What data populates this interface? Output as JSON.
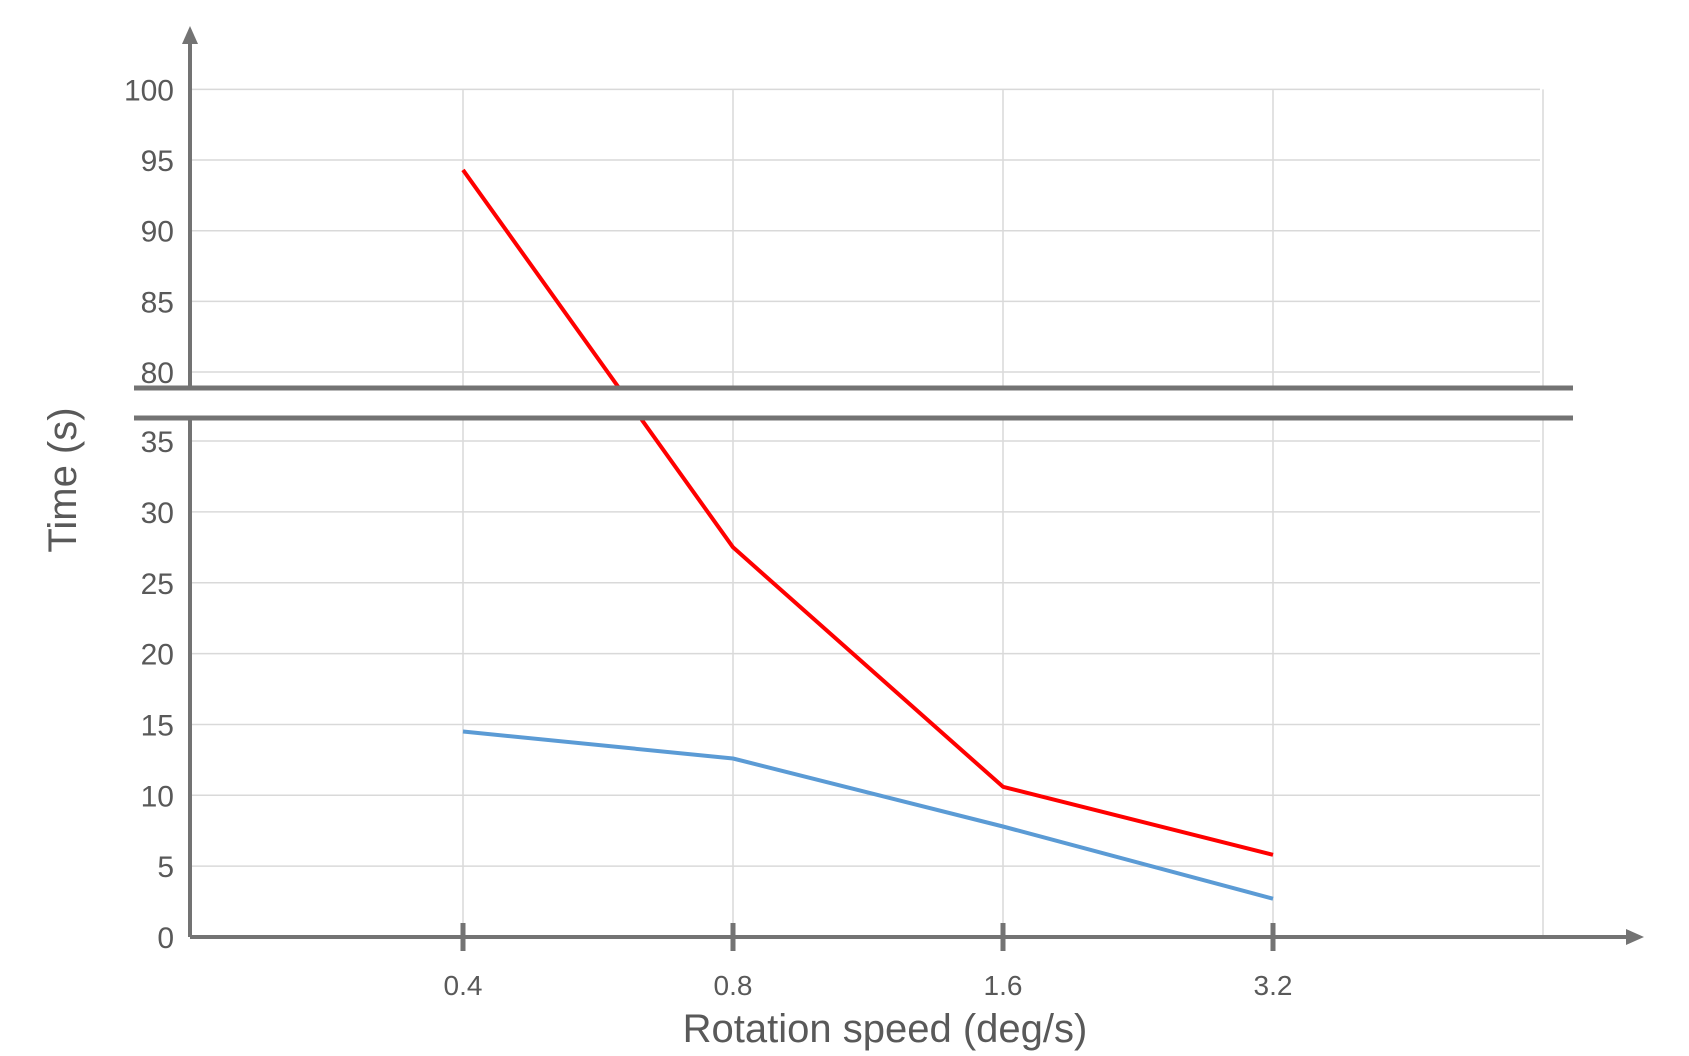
{
  "chart_data": {
    "type": "line",
    "xlabel": "Rotation speed (deg/s)",
    "ylabel": "Time (s)",
    "categories": [
      "0.4",
      "0.8",
      "1.6",
      "3.2"
    ],
    "y_ticks_lower": [
      "0",
      "5",
      "10",
      "15",
      "20",
      "25",
      "30",
      "35"
    ],
    "y_ticks_upper": [
      "80",
      "85",
      "90",
      "95",
      "100"
    ],
    "ylim_lower": [
      0,
      36
    ],
    "ylim_upper": [
      79,
      100
    ],
    "axis_break": true,
    "grid": true,
    "legend": "none",
    "series": [
      {
        "color": "#ff0000",
        "values": [
          94.3,
          27.5,
          10.6,
          5.8
        ]
      },
      {
        "color": "#5b9bd5",
        "values": [
          14.5,
          12.6,
          7.8,
          2.7
        ]
      }
    ],
    "colors": {
      "axis": "#737373",
      "grid": "#d9d9d9",
      "text": "#595959"
    }
  }
}
